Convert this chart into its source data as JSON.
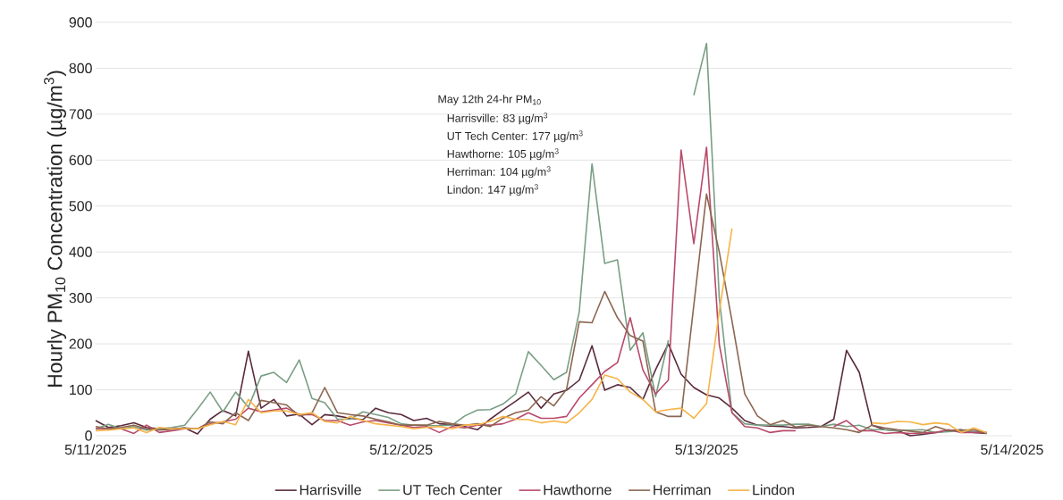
{
  "chart_data": {
    "type": "line",
    "ylabel": "Hourly PM$_{10}$ Concentration (µg/m$^{3}$)",
    "annotations": [
      "May 12th 24-hr PM$_{10}$",
      "Harrisville: 83 µg/m$^{3}$",
      "UT Tech Center: 177 µg/m$^{3}$",
      "Hawthorne: 105 µg/m$^{3}$",
      "Herriman: 104 µg/m$^{3}$",
      "Lindon: 147 µg/m$^{3}$"
    ],
    "x": [
      "2025-05-11T00:00",
      "2025-05-11T01:00",
      "2025-05-11T02:00",
      "2025-05-11T03:00",
      "2025-05-11T04:00",
      "2025-05-11T05:00",
      "2025-05-11T06:00",
      "2025-05-11T07:00",
      "2025-05-11T08:00",
      "2025-05-11T09:00",
      "2025-05-11T10:00",
      "2025-05-11T11:00",
      "2025-05-11T12:00",
      "2025-05-11T13:00",
      "2025-05-11T14:00",
      "2025-05-11T15:00",
      "2025-05-11T16:00",
      "2025-05-11T17:00",
      "2025-05-11T18:00",
      "2025-05-11T19:00",
      "2025-05-11T20:00",
      "2025-05-11T21:00",
      "2025-05-11T22:00",
      "2025-05-11T23:00",
      "2025-05-12T00:00",
      "2025-05-12T01:00",
      "2025-05-12T02:00",
      "2025-05-12T03:00",
      "2025-05-12T04:00",
      "2025-05-12T05:00",
      "2025-05-12T06:00",
      "2025-05-12T07:00",
      "2025-05-12T08:00",
      "2025-05-12T09:00",
      "2025-05-12T10:00",
      "2025-05-12T11:00",
      "2025-05-12T12:00",
      "2025-05-12T13:00",
      "2025-05-12T14:00",
      "2025-05-12T15:00",
      "2025-05-12T16:00",
      "2025-05-12T17:00",
      "2025-05-12T18:00",
      "2025-05-12T19:00",
      "2025-05-12T20:00",
      "2025-05-12T21:00",
      "2025-05-12T22:00",
      "2025-05-12T23:00",
      "2025-05-13T00:00",
      "2025-05-13T01:00",
      "2025-05-13T02:00",
      "2025-05-13T03:00",
      "2025-05-13T04:00",
      "2025-05-13T05:00",
      "2025-05-13T06:00",
      "2025-05-13T07:00",
      "2025-05-13T08:00",
      "2025-05-13T09:00",
      "2025-05-13T10:00",
      "2025-05-13T11:00",
      "2025-05-13T12:00",
      "2025-05-13T13:00",
      "2025-05-13T14:00",
      "2025-05-13T15:00",
      "2025-05-13T16:00",
      "2025-05-13T17:00",
      "2025-05-13T18:00",
      "2025-05-13T19:00",
      "2025-05-13T20:00",
      "2025-05-13T21:00",
      "2025-05-13T22:00"
    ],
    "series": [
      {
        "name": "Harrisville",
        "color": "#5a2a3c",
        "values": [
          33,
          18,
          22,
          28,
          18,
          15,
          15,
          17,
          4,
          36,
          55,
          43,
          184,
          60,
          79,
          43,
          47,
          24,
          46,
          43,
          38,
          35,
          60,
          50,
          46,
          33,
          38,
          26,
          24,
          20,
          13,
          36,
          56,
          75,
          95,
          60,
          91,
          99,
          121,
          196,
          99,
          111,
          105,
          79,
          144,
          200,
          134,
          105,
          89,
          82,
          60,
          33,
          23,
          21,
          20,
          17,
          18,
          20,
          36,
          186,
          138,
          23,
          13,
          11,
          0,
          3,
          7,
          11,
          13,
          7,
          5
        ]
      },
      {
        "name": "UT Tech Center",
        "color": "#7a9e84",
        "values": [
          15,
          25,
          15,
          20,
          12,
          15,
          18,
          23,
          58,
          95,
          52,
          95,
          62,
          130,
          138,
          116,
          165,
          81,
          72,
          36,
          36,
          52,
          46,
          40,
          26,
          23,
          22,
          22,
          23,
          43,
          56,
          57,
          69,
          91,
          183,
          153,
          122,
          138,
          270,
          592,
          375,
          383,
          186,
          224,
          85,
          208,
          null,
          741,
          854,
          300,
          50,
          26,
          23,
          23,
          23,
          25,
          25,
          20,
          25,
          20,
          23,
          13,
          13,
          11,
          12,
          13,
          7,
          9,
          11,
          9,
          7
        ]
      },
      {
        "name": "Hawthorne",
        "color": "#b84a6a",
        "values": [
          15,
          15,
          15,
          5,
          23,
          7,
          11,
          15,
          15,
          26,
          30,
          36,
          60,
          52,
          56,
          60,
          46,
          46,
          33,
          33,
          23,
          30,
          33,
          28,
          23,
          18,
          20,
          7,
          20,
          17,
          23,
          23,
          26,
          36,
          50,
          38,
          38,
          42,
          82,
          111,
          140,
          159,
          257,
          143,
          91,
          121,
          622,
          418,
          628,
          199,
          50,
          20,
          17,
          7,
          11,
          11,
          null,
          null,
          20,
          33,
          11,
          11,
          5,
          7,
          5,
          6,
          7,
          13,
          7,
          7,
          7
        ]
      },
      {
        "name": "Herriman",
        "color": "#8b6650",
        "values": [
          20,
          15,
          18,
          23,
          15,
          12,
          14,
          17,
          15,
          30,
          26,
          50,
          33,
          77,
          72,
          67,
          43,
          50,
          105,
          50,
          46,
          43,
          36,
          30,
          23,
          23,
          23,
          31,
          26,
          23,
          26,
          20,
          38,
          50,
          56,
          85,
          65,
          101,
          248,
          246,
          314,
          257,
          218,
          206,
          52,
          42,
          42,
          284,
          526,
          400,
          250,
          91,
          43,
          24,
          33,
          19,
          23,
          20,
          17,
          13,
          7,
          23,
          17,
          13,
          10,
          7,
          20,
          11,
          12,
          13,
          5
        ]
      },
      {
        "name": "Lindon",
        "color": "#f7b347",
        "values": [
          11,
          12,
          15,
          17,
          7,
          18,
          15,
          15,
          15,
          24,
          31,
          24,
          79,
          50,
          54,
          54,
          46,
          50,
          31,
          28,
          42,
          33,
          26,
          23,
          20,
          15,
          18,
          20,
          15,
          23,
          24,
          31,
          42,
          36,
          35,
          28,
          32,
          28,
          50,
          79,
          132,
          124,
          95,
          79,
          52,
          57,
          60,
          38,
          70,
          270,
          451,
          null,
          null,
          null,
          null,
          null,
          null,
          null,
          null,
          null,
          null,
          28,
          26,
          31,
          30,
          24,
          28,
          25,
          7,
          17,
          7
        ]
      }
    ],
    "xlim": [
      "2025-05-11",
      "2025-05-14"
    ],
    "xticks": [
      {
        "value": "2025-05-11",
        "label": "5/11/2025"
      },
      {
        "value": "2025-05-12",
        "label": "5/12/2025"
      },
      {
        "value": "2025-05-13",
        "label": "5/13/2025"
      },
      {
        "value": "2025-05-14",
        "label": "5/14/2025"
      }
    ],
    "ylim": [
      0,
      900
    ],
    "yticks": [
      0,
      100,
      200,
      300,
      400,
      500,
      600,
      700,
      800,
      900
    ],
    "grid": "y",
    "legend": "bottom"
  }
}
